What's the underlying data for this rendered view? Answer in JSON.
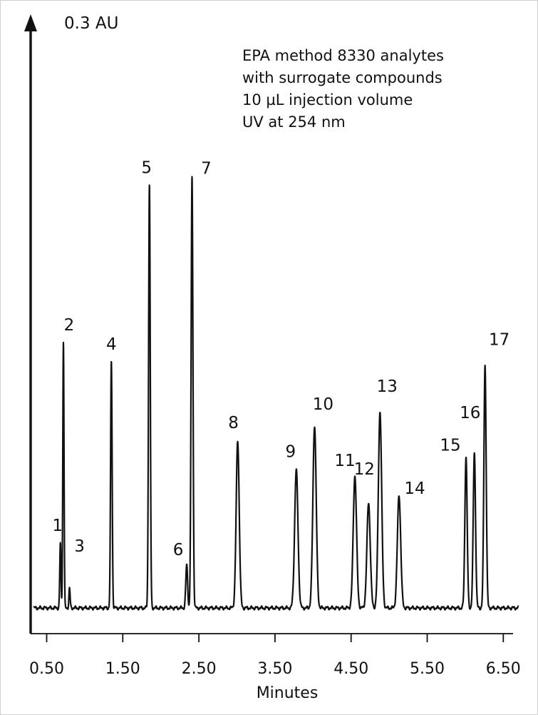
{
  "chart_data": {
    "type": "line",
    "title": "",
    "xlabel": "Minutes",
    "ylabel": "0.3 AU",
    "xlim": [
      0.3,
      6.75
    ],
    "ylim": [
      0,
      0.3
    ],
    "x_ticks": [
      "0.50",
      "1.50",
      "2.50",
      "3.50",
      "4.50",
      "5.50",
      "6.50"
    ],
    "x_tick_values": [
      0.5,
      1.5,
      2.5,
      3.5,
      4.5,
      5.5,
      6.5
    ],
    "grid": false,
    "legend": "none",
    "annotation_lines": [
      "EPA method 8330 analytes",
      "with surrogate compounds",
      "10  µL injection volume",
      "UV at 254 nm"
    ],
    "baseline_au": 0.0,
    "peaks": [
      {
        "label": "1",
        "rt": 0.68,
        "height_au": 0.033,
        "width": 0.008
      },
      {
        "label": "2",
        "rt": 0.72,
        "height_au": 0.137,
        "width": 0.008
      },
      {
        "label": "3",
        "rt": 0.8,
        "height_au": 0.01,
        "width": 0.008
      },
      {
        "label": "4",
        "rt": 1.35,
        "height_au": 0.127,
        "width": 0.01
      },
      {
        "label": "5",
        "rt": 1.85,
        "height_au": 0.218,
        "width": 0.011
      },
      {
        "label": "6",
        "rt": 2.34,
        "height_au": 0.022,
        "width": 0.012
      },
      {
        "label": "7",
        "rt": 2.41,
        "height_au": 0.222,
        "width": 0.012
      },
      {
        "label": "8",
        "rt": 3.01,
        "height_au": 0.086,
        "width": 0.02
      },
      {
        "label": "9",
        "rt": 3.78,
        "height_au": 0.071,
        "width": 0.022
      },
      {
        "label": "10",
        "rt": 4.02,
        "height_au": 0.094,
        "width": 0.022
      },
      {
        "label": "11",
        "rt": 4.55,
        "height_au": 0.068,
        "width": 0.022
      },
      {
        "label": "12",
        "rt": 4.73,
        "height_au": 0.054,
        "width": 0.022
      },
      {
        "label": "13",
        "rt": 4.88,
        "height_au": 0.101,
        "width": 0.022
      },
      {
        "label": "14",
        "rt": 5.13,
        "height_au": 0.058,
        "width": 0.022
      },
      {
        "label": "15",
        "rt": 6.01,
        "height_au": 0.078,
        "width": 0.015
      },
      {
        "label": "16",
        "rt": 6.12,
        "height_au": 0.08,
        "width": 0.015
      },
      {
        "label": "17",
        "rt": 6.26,
        "height_au": 0.125,
        "width": 0.015
      }
    ]
  }
}
